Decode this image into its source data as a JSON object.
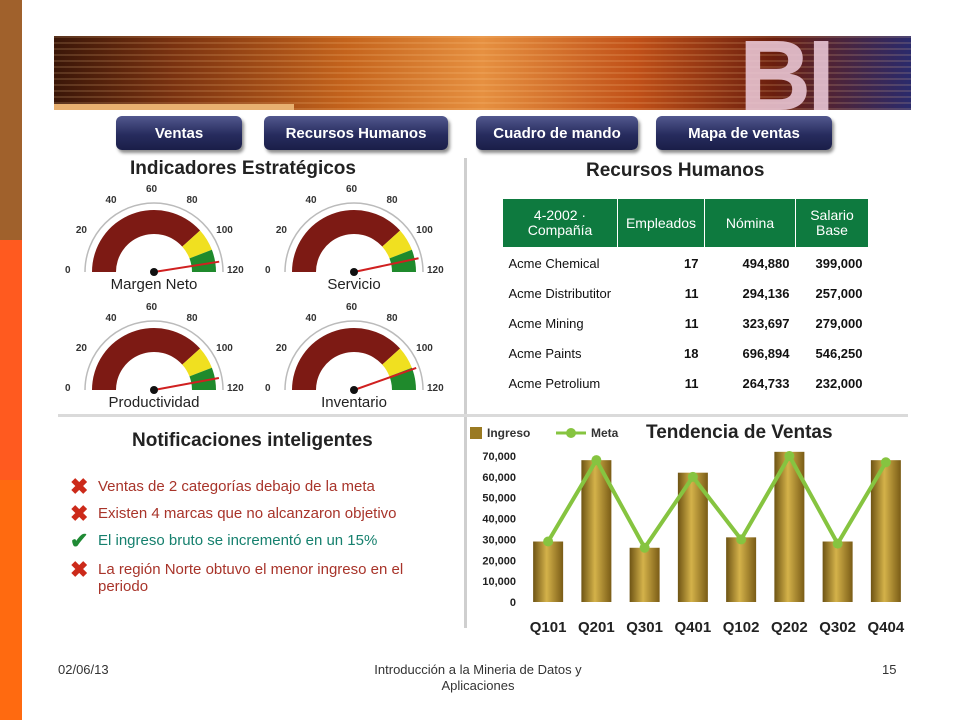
{
  "banner": {
    "logo_text": "BI"
  },
  "nav": {
    "buttons": [
      "Ventas",
      "Recursos Humanos",
      "Cuadro de mando",
      "Mapa de ventas"
    ]
  },
  "indicators": {
    "title": "Indicadores Estratégicos",
    "tick_labels": [
      "0",
      "20",
      "40",
      "60",
      "80",
      "100",
      "120"
    ],
    "gauges": [
      {
        "label": "Margen Neto",
        "value": 114
      },
      {
        "label": "Servicio",
        "value": 112
      },
      {
        "label": "Productividad",
        "value": 113
      },
      {
        "label": "Inventario",
        "value": 107
      }
    ],
    "colors": {
      "red": "#7d1a14",
      "yellow": "#f0e020",
      "green": "#1f8a2c",
      "needle": "#d02020"
    }
  },
  "hr": {
    "title": "Recursos Humanos",
    "headers": [
      "4-2002 · Compañía",
      "Empleados",
      "Nómina",
      "Salario Base"
    ],
    "rows": [
      [
        "Acme Chemical",
        "17",
        "494,880",
        "399,000"
      ],
      [
        "Acme Distributitor",
        "11",
        "294,136",
        "257,000"
      ],
      [
        "Acme Mining",
        "11",
        "323,697",
        "279,000"
      ],
      [
        "Acme Paints",
        "18",
        "696,894",
        "546,250"
      ],
      [
        "Acme Petrolium",
        "11",
        "264,733",
        "232,000"
      ]
    ],
    "header_color": "#0e7a3f"
  },
  "notifications": {
    "title": "Notificaciones inteligentes",
    "items": [
      {
        "icon": "cross-icon",
        "status": "bad",
        "text": "Ventas de 2 categorías debajo de la meta"
      },
      {
        "icon": "cross-icon",
        "status": "bad",
        "text": "Existen 4 marcas que no alcanzaron objetivo"
      },
      {
        "icon": "check-icon",
        "status": "good",
        "text": "El ingreso bruto se incrementó en un  15%"
      },
      {
        "icon": "cross-icon",
        "status": "bad",
        "text": "La región Norte obtuvo el menor ingreso en el periodo"
      }
    ]
  },
  "chart_data": {
    "type": "bar",
    "title": "Tendencia de Ventas",
    "categories": [
      "Q101",
      "Q201",
      "Q301",
      "Q401",
      "Q102",
      "Q202",
      "Q302",
      "Q404"
    ],
    "series": [
      {
        "name": "Ingreso",
        "type": "bar",
        "color": "#9a7a22",
        "values": [
          29000,
          68000,
          26000,
          62000,
          31000,
          72000,
          29000,
          68000
        ]
      },
      {
        "name": "Meta",
        "type": "line",
        "color": "#86c440",
        "values": [
          29000,
          68000,
          26000,
          60000,
          30000,
          70000,
          28000,
          67000
        ]
      }
    ],
    "y_ticks": [
      "70,000",
      "60,000",
      "50,000",
      "40,000",
      "30,000",
      "20,000",
      "10,000",
      "0"
    ],
    "ylim": [
      0,
      70000
    ],
    "legend": "top-left",
    "grid": false
  },
  "footer": {
    "date": "02/06/13",
    "title": "Introducción a la Mineria de Datos y Aplicaciones",
    "page": "15"
  }
}
